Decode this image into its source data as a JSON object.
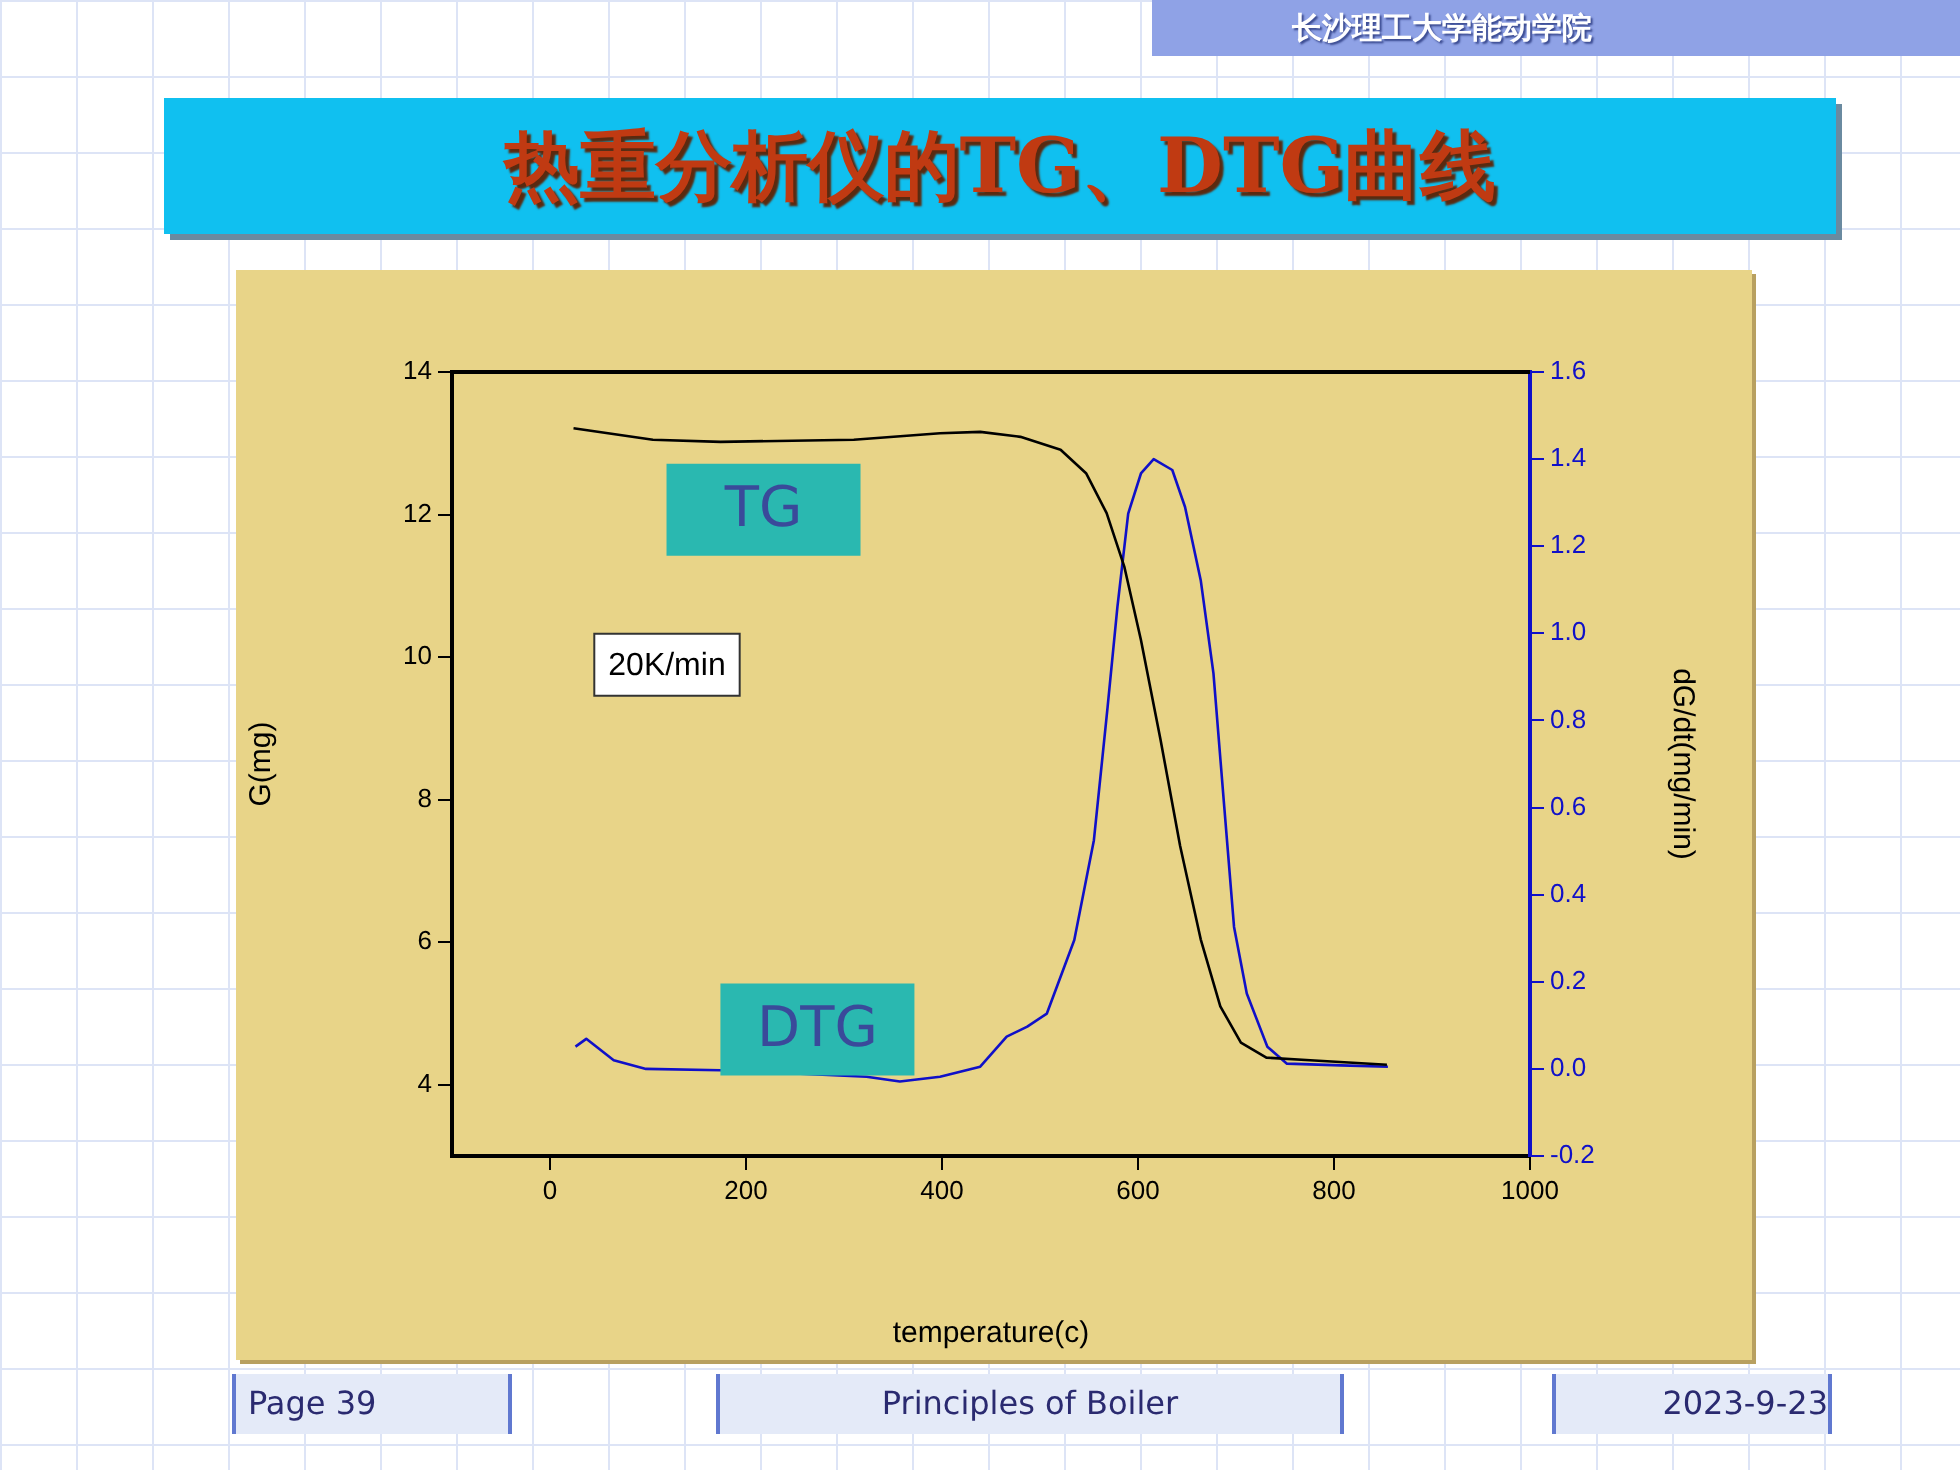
{
  "chart_data": {
    "type": "line",
    "title": "热重分析仪的TG、DTG曲线",
    "xlabel": "temperature(c)",
    "ylabel": "G(mg)",
    "y2label": "dG/dt(mg/min)",
    "xlim": [
      -100,
      1000
    ],
    "xticks": [
      0,
      200,
      400,
      600,
      800,
      1000
    ],
    "ylim": [
      3,
      14
    ],
    "yticks": [
      4,
      6,
      8,
      10,
      12,
      14
    ],
    "y2lim": [
      -0.2,
      1.6
    ],
    "y2ticks": [
      -0.2,
      {
        "value": 0,
        "label": "0.0"
      },
      0.2,
      0.4,
      0.6,
      0.8,
      {
        "value": 1,
        "label": "1.0"
      },
      1.2,
      1.4,
      1.6
    ],
    "grid": false,
    "marker": "none",
    "line_style": "solid",
    "series": [
      {
        "name": "TG",
        "color": "#000000",
        "x": [
          24,
          105,
          174,
          310,
          398,
          439,
          480,
          521,
          547,
          568,
          586,
          603,
          623,
          643,
          664,
          684,
          705,
          731,
          780,
          854
        ],
        "values": [
          13.21,
          13.05,
          13.02,
          13.05,
          13.14,
          13.16,
          13.09,
          12.91,
          12.58,
          12.02,
          11.27,
          10.24,
          8.84,
          7.35,
          6.04,
          5.1,
          4.59,
          4.38,
          4.34,
          4.28
        ]
      },
      {
        "name": "DTG",
        "color": "#1010c8",
        "axis": "y2",
        "x": [
          26,
          37,
          65,
          98,
          174,
          323,
          357,
          398,
          439,
          466,
          487,
          507,
          535,
          555,
          569,
          579,
          590,
          603,
          616,
          635,
          648,
          664,
          677,
          688,
          698,
          711,
          732,
          752,
          807,
          855
        ],
        "values": [
          0.051,
          0.069,
          0.02,
          0.0,
          -0.003,
          -0.018,
          -0.029,
          -0.018,
          0.005,
          0.074,
          0.097,
          0.127,
          0.296,
          0.525,
          0.831,
          1.061,
          1.275,
          1.367,
          1.4,
          1.375,
          1.29,
          1.122,
          0.908,
          0.602,
          0.326,
          0.173,
          0.051,
          0.012,
          0.008,
          0.005
        ]
      }
    ],
    "annotations": [
      "20K/min",
      "长沙理工大学能动学院",
      "Page 39",
      "Principles of Boiler",
      "2023-9-23"
    ]
  }
}
